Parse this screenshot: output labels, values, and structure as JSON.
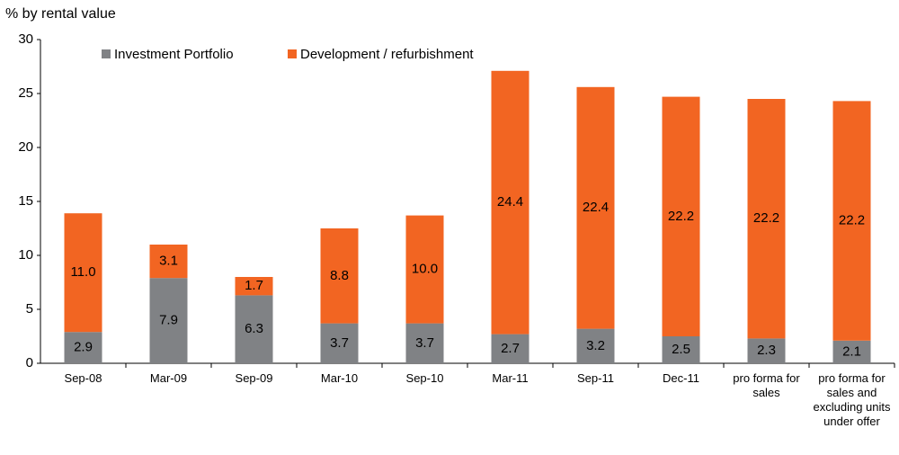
{
  "chart_data": {
    "type": "stacked_bar",
    "y_axis_label": "% by rental value",
    "categories": [
      "Sep-08",
      "Mar-09",
      "Sep-09",
      "Mar-10",
      "Sep-10",
      "Mar-11",
      "Sep-11",
      "Dec-11",
      "pro forma for sales",
      "pro forma for sales and excluding units under offer"
    ],
    "series": [
      {
        "name": "Investment Portfolio",
        "color": "#808285",
        "values": [
          2.9,
          7.9,
          6.3,
          3.7,
          3.7,
          2.7,
          3.2,
          2.5,
          2.3,
          2.1
        ],
        "value_labels": [
          "2.9",
          "7.9",
          "6.3",
          "3.7",
          "3.7",
          "2.7",
          "3.2",
          "2.5",
          "2.3",
          "2.1"
        ]
      },
      {
        "name": "Development / refurbishment",
        "color": "#f26522",
        "values": [
          11.0,
          3.1,
          1.7,
          8.8,
          10.0,
          24.4,
          22.4,
          22.2,
          22.2,
          22.2
        ],
        "value_labels": [
          "11.0",
          "3.1",
          "1.7",
          "8.8",
          "10.0",
          "24.4",
          "22.4",
          "22.2",
          "22.2",
          "22.2"
        ]
      }
    ],
    "ylim": [
      0,
      30
    ],
    "yticks": [
      0,
      5,
      10,
      15,
      20,
      25,
      30
    ],
    "grid": false,
    "legend": "top"
  }
}
